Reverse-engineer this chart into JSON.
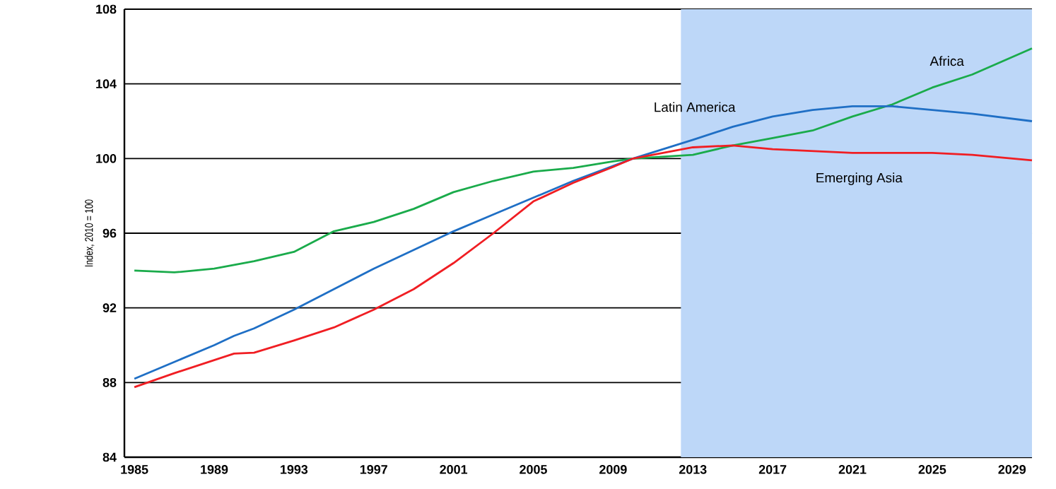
{
  "chart_data": {
    "type": "line",
    "ylabel": "Index, 2010 = 100",
    "x": [
      1985,
      1987,
      1989,
      1990,
      1991,
      1993,
      1995,
      1997,
      1999,
      2001,
      2003,
      2005,
      2007,
      2009,
      2010,
      2013,
      2015,
      2017,
      2019,
      2021,
      2023,
      2025,
      2027,
      2030
    ],
    "series": [
      {
        "name": "Africa",
        "color": "#1aab4b",
        "values": [
          94.0,
          93.9,
          94.1,
          94.3,
          94.5,
          95.0,
          96.1,
          96.6,
          97.3,
          98.2,
          98.8,
          99.3,
          99.5,
          99.85,
          100,
          100.2,
          100.7,
          101.1,
          101.5,
          102.25,
          102.9,
          103.8,
          104.5,
          105.9
        ]
      },
      {
        "name": "Latin America",
        "color": "#1f6fc5",
        "values": [
          88.2,
          89.1,
          90.0,
          90.5,
          90.9,
          91.9,
          93.0,
          94.1,
          95.1,
          96.1,
          97.0,
          97.9,
          98.8,
          99.6,
          100,
          101.0,
          101.7,
          102.25,
          102.6,
          102.8,
          102.8,
          102.6,
          102.4,
          102.0
        ]
      },
      {
        "name": "Emerging Asia",
        "color": "#f01e23",
        "values": [
          87.75,
          88.5,
          89.2,
          89.55,
          89.6,
          90.25,
          90.95,
          91.9,
          93.0,
          94.4,
          96.0,
          97.7,
          98.7,
          99.55,
          100,
          100.6,
          100.7,
          100.5,
          100.4,
          100.3,
          100.3,
          100.3,
          100.2,
          99.9
        ]
      }
    ],
    "xlim": [
      1984.5,
      2030
    ],
    "ylim": [
      84,
      108
    ],
    "xticks": [
      1985,
      1989,
      1993,
      1997,
      2001,
      2005,
      2009,
      2013,
      2017,
      2021,
      2025,
      2029
    ],
    "yticks": [
      84,
      88,
      92,
      96,
      100,
      104,
      108
    ],
    "grid": "y",
    "legend": false,
    "marker": "none",
    "line_style": "solid",
    "bands": [
      {
        "axis": "x",
        "from": 2012.4,
        "to": 2030,
        "color": "#bdd7f8"
      }
    ]
  }
}
